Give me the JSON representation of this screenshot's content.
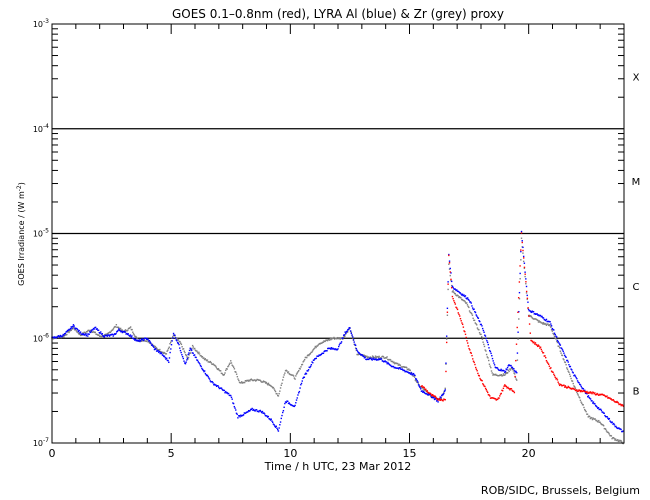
{
  "chart_data": {
    "type": "scatter",
    "title": "GOES 0.1–0.8nm (red), LYRA Al (blue) & Zr (grey) proxy",
    "xlabel": "Time / h UTC, 23 Mar 2012",
    "ylabel": "GOES Irradiance / (W m",
    "ylabel_sup": "-2",
    "ylabel_end": ")",
    "xlim": [
      0,
      24
    ],
    "ylim": [
      1e-07,
      0.001
    ],
    "yscale": "log",
    "xticks": [
      0,
      5,
      10,
      15,
      20
    ],
    "xtick_labels": [
      "0",
      "5",
      "10",
      "15",
      "20"
    ],
    "yticks": [
      {
        "base": "10",
        "exp": "-3",
        "value": -3
      },
      {
        "base": "10",
        "exp": "-4",
        "value": -4
      },
      {
        "base": "10",
        "exp": "-5",
        "value": -5
      },
      {
        "base": "10",
        "exp": "-6",
        "value": -6
      },
      {
        "base": "10",
        "exp": "-7",
        "value": -7
      }
    ],
    "flare_classes": [
      {
        "label": "X",
        "log_center": -3.5
      },
      {
        "label": "M",
        "log_center": -4.5
      },
      {
        "label": "C",
        "log_center": -5.5
      },
      {
        "label": "B",
        "log_center": -6.5
      }
    ],
    "class_lines": [
      -4,
      -5,
      -6
    ],
    "series": [
      {
        "name": "LYRA Zr proxy",
        "color": "#808080",
        "log10_values": [
          [
            0,
            -6.0
          ],
          [
            0.5,
            -5.98
          ],
          [
            0.9,
            -5.9
          ],
          [
            1.2,
            -5.97
          ],
          [
            1.6,
            -5.92
          ],
          [
            2.0,
            -5.98
          ],
          [
            2.3,
            -5.97
          ],
          [
            2.7,
            -5.88
          ],
          [
            3.0,
            -5.94
          ],
          [
            3.3,
            -5.9
          ],
          [
            3.6,
            -6.02
          ],
          [
            4.0,
            -6.02
          ],
          [
            4.4,
            -6.1
          ],
          [
            4.8,
            -6.15
          ],
          [
            5.1,
            -5.97
          ],
          [
            5.4,
            -6.05
          ],
          [
            5.7,
            -6.2
          ],
          [
            5.9,
            -6.08
          ],
          [
            6.4,
            -6.2
          ],
          [
            6.8,
            -6.25
          ],
          [
            7.2,
            -6.35
          ],
          [
            7.5,
            -6.22
          ],
          [
            7.9,
            -6.43
          ],
          [
            8.3,
            -6.4
          ],
          [
            8.7,
            -6.4
          ],
          [
            9.2,
            -6.45
          ],
          [
            9.5,
            -6.55
          ],
          [
            9.8,
            -6.3
          ],
          [
            10.2,
            -6.38
          ],
          [
            10.6,
            -6.2
          ],
          [
            11.2,
            -6.05
          ],
          [
            11.8,
            -6.0
          ],
          [
            12.2,
            -6.0
          ],
          [
            12.5,
            -5.9
          ],
          [
            12.8,
            -6.15
          ],
          [
            13.3,
            -6.18
          ],
          [
            14.0,
            -6.18
          ],
          [
            14.5,
            -6.25
          ],
          [
            15.0,
            -6.3
          ],
          [
            15.4,
            -6.45
          ],
          [
            15.9,
            -6.55
          ],
          [
            16.3,
            -6.58
          ],
          [
            16.5,
            -6.48
          ],
          [
            16.65,
            -5.3
          ],
          [
            16.8,
            -5.55
          ],
          [
            17.4,
            -5.67
          ],
          [
            18.0,
            -5.97
          ],
          [
            18.5,
            -6.35
          ],
          [
            19.0,
            -6.35
          ],
          [
            19.3,
            -6.28
          ],
          [
            19.5,
            -6.4
          ],
          [
            19.7,
            -5.05
          ],
          [
            20.0,
            -5.78
          ],
          [
            20.5,
            -5.85
          ],
          [
            20.9,
            -5.88
          ],
          [
            21.3,
            -6.1
          ],
          [
            21.9,
            -6.45
          ],
          [
            22.5,
            -6.75
          ],
          [
            23.0,
            -6.8
          ],
          [
            23.5,
            -6.95
          ],
          [
            24.0,
            -7.0
          ]
        ]
      },
      {
        "name": "LYRA Al proxy",
        "color": "#0000ff",
        "log10_values": [
          [
            0,
            -6.0
          ],
          [
            0.5,
            -5.97
          ],
          [
            0.9,
            -5.88
          ],
          [
            1.2,
            -5.95
          ],
          [
            1.5,
            -5.97
          ],
          [
            1.8,
            -5.9
          ],
          [
            2.2,
            -5.98
          ],
          [
            2.6,
            -5.97
          ],
          [
            2.8,
            -5.92
          ],
          [
            3.2,
            -5.96
          ],
          [
            3.6,
            -6.03
          ],
          [
            4.0,
            -6.0
          ],
          [
            4.3,
            -6.1
          ],
          [
            4.6,
            -6.15
          ],
          [
            4.9,
            -6.22
          ],
          [
            5.1,
            -5.95
          ],
          [
            5.3,
            -6.05
          ],
          [
            5.6,
            -6.25
          ],
          [
            5.8,
            -6.1
          ],
          [
            6.2,
            -6.25
          ],
          [
            6.7,
            -6.42
          ],
          [
            7.2,
            -6.5
          ],
          [
            7.5,
            -6.55
          ],
          [
            7.8,
            -6.75
          ],
          [
            8.1,
            -6.72
          ],
          [
            8.4,
            -6.68
          ],
          [
            8.8,
            -6.7
          ],
          [
            9.2,
            -6.78
          ],
          [
            9.5,
            -6.88
          ],
          [
            9.8,
            -6.6
          ],
          [
            10.2,
            -6.65
          ],
          [
            10.5,
            -6.4
          ],
          [
            11.0,
            -6.2
          ],
          [
            11.6,
            -6.1
          ],
          [
            12.0,
            -6.1
          ],
          [
            12.3,
            -5.95
          ],
          [
            12.5,
            -5.9
          ],
          [
            12.8,
            -6.12
          ],
          [
            13.2,
            -6.2
          ],
          [
            13.8,
            -6.2
          ],
          [
            14.3,
            -6.27
          ],
          [
            14.7,
            -6.3
          ],
          [
            15.2,
            -6.35
          ],
          [
            15.5,
            -6.5
          ],
          [
            15.9,
            -6.55
          ],
          [
            16.2,
            -6.6
          ],
          [
            16.5,
            -6.5
          ],
          [
            16.65,
            -5.2
          ],
          [
            16.8,
            -5.51
          ],
          [
            17.5,
            -5.63
          ],
          [
            18.1,
            -5.92
          ],
          [
            18.6,
            -6.28
          ],
          [
            19.0,
            -6.32
          ],
          [
            19.2,
            -6.25
          ],
          [
            19.5,
            -6.33
          ],
          [
            19.7,
            -4.99
          ],
          [
            20.0,
            -5.73
          ],
          [
            20.5,
            -5.79
          ],
          [
            20.9,
            -5.85
          ],
          [
            21.3,
            -6.06
          ],
          [
            21.9,
            -6.35
          ],
          [
            22.6,
            -6.59
          ],
          [
            23.2,
            -6.73
          ],
          [
            23.6,
            -6.83
          ],
          [
            24.0,
            -6.9
          ]
        ]
      },
      {
        "name": "GOES 0.1-0.8nm",
        "color": "#ff0000",
        "log10_values": [
          [
            15.5,
            -6.45
          ],
          [
            15.9,
            -6.54
          ],
          [
            16.2,
            -6.58
          ],
          [
            16.5,
            -6.59
          ],
          [
            16.65,
            -5.2
          ],
          [
            16.8,
            -5.6
          ],
          [
            17.2,
            -5.85
          ],
          [
            17.5,
            -6.09
          ],
          [
            17.9,
            -6.35
          ],
          [
            18.4,
            -6.57
          ],
          [
            18.7,
            -6.59
          ],
          [
            19.0,
            -6.45
          ],
          [
            19.4,
            -6.51
          ],
          [
            19.7,
            -5.0
          ],
          [
            20.1,
            -6.02
          ],
          [
            20.5,
            -6.09
          ],
          [
            20.9,
            -6.28
          ],
          [
            21.3,
            -6.44
          ],
          [
            21.9,
            -6.49
          ],
          [
            22.6,
            -6.52
          ],
          [
            23.2,
            -6.55
          ],
          [
            24.0,
            -6.65
          ]
        ]
      }
    ]
  },
  "footer": "ROB/SIDC, Brussels, Belgium"
}
